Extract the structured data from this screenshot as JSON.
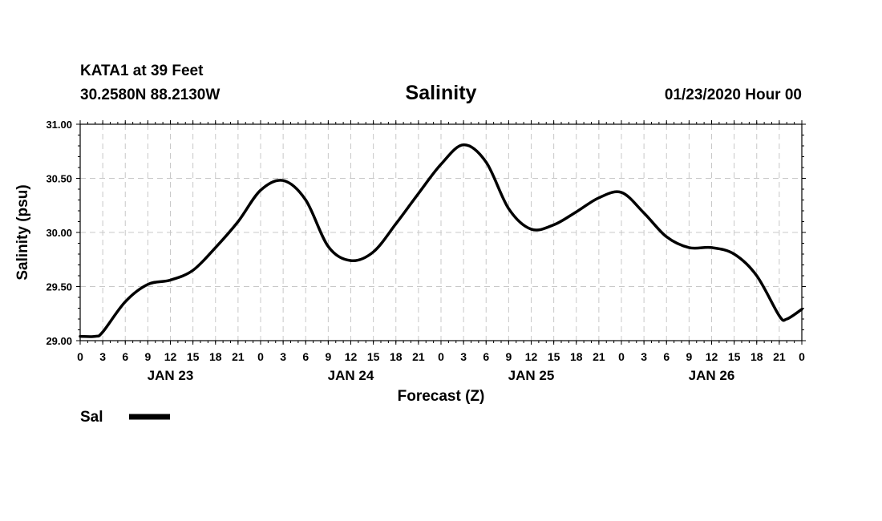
{
  "header": {
    "station": "KATA1 at 39 Feet",
    "location": "30.2580N 88.2130W",
    "title": "Salinity",
    "run": "01/23/2020 Hour 00"
  },
  "legend": {
    "label": "Sal",
    "color": "#000000"
  },
  "chart_data": {
    "type": "line",
    "title": "Salinity",
    "xlabel": "Forecast (Z)",
    "ylabel": "Salinity (psu)",
    "ylim": [
      29.0,
      31.0
    ],
    "yticks": [
      "29.00",
      "29.50",
      "30.00",
      "30.50",
      "31.00"
    ],
    "xlim": [
      "2020-01-23T00Z",
      "2020-01-27T00Z"
    ],
    "xtick_labels": [
      "0",
      "3",
      "6",
      "9",
      "12",
      "15",
      "18",
      "21",
      "0",
      "3",
      "6",
      "9",
      "12",
      "15",
      "18",
      "21",
      "0",
      "3",
      "6",
      "9",
      "12",
      "15",
      "18",
      "21",
      "0",
      "3",
      "6",
      "9",
      "12",
      "15",
      "18",
      "21",
      "0"
    ],
    "day_labels": [
      {
        "label": "JAN 23",
        "at": "2020-01-23T12Z"
      },
      {
        "label": "JAN 24",
        "at": "2020-01-24T12Z"
      },
      {
        "label": "JAN 25",
        "at": "2020-01-25T12Z"
      },
      {
        "label": "JAN 26",
        "at": "2020-01-26T12Z"
      }
    ],
    "grid": true,
    "series": [
      {
        "name": "Sal",
        "color": "#000000",
        "x": [
          "2020-01-23T00Z",
          "2020-01-23T02Z",
          "2020-01-23T03Z",
          "2020-01-23T06Z",
          "2020-01-23T09Z",
          "2020-01-23T12Z",
          "2020-01-23T15Z",
          "2020-01-23T18Z",
          "2020-01-23T21Z",
          "2020-01-24T00Z",
          "2020-01-24T03Z",
          "2020-01-24T06Z",
          "2020-01-24T09Z",
          "2020-01-24T12Z",
          "2020-01-24T15Z",
          "2020-01-24T18Z",
          "2020-01-24T21Z",
          "2020-01-25T00Z",
          "2020-01-25T03Z",
          "2020-01-25T06Z",
          "2020-01-25T09Z",
          "2020-01-25T12Z",
          "2020-01-25T15Z",
          "2020-01-25T18Z",
          "2020-01-25T21Z",
          "2020-01-26T00Z",
          "2020-01-26T03Z",
          "2020-01-26T06Z",
          "2020-01-26T09Z",
          "2020-01-26T12Z",
          "2020-01-26T15Z",
          "2020-01-26T18Z",
          "2020-01-26T21Z",
          "2020-01-26T22Z",
          "2020-01-27T00Z"
        ],
        "values": [
          29.04,
          29.04,
          29.08,
          29.36,
          29.52,
          29.56,
          29.65,
          29.86,
          30.1,
          30.39,
          30.48,
          30.3,
          29.87,
          29.74,
          29.82,
          30.08,
          30.36,
          30.63,
          30.81,
          30.65,
          30.22,
          30.03,
          30.07,
          30.19,
          30.32,
          30.37,
          30.18,
          29.96,
          29.86,
          29.86,
          29.8,
          29.6,
          29.23,
          29.2,
          29.29
        ]
      }
    ]
  }
}
